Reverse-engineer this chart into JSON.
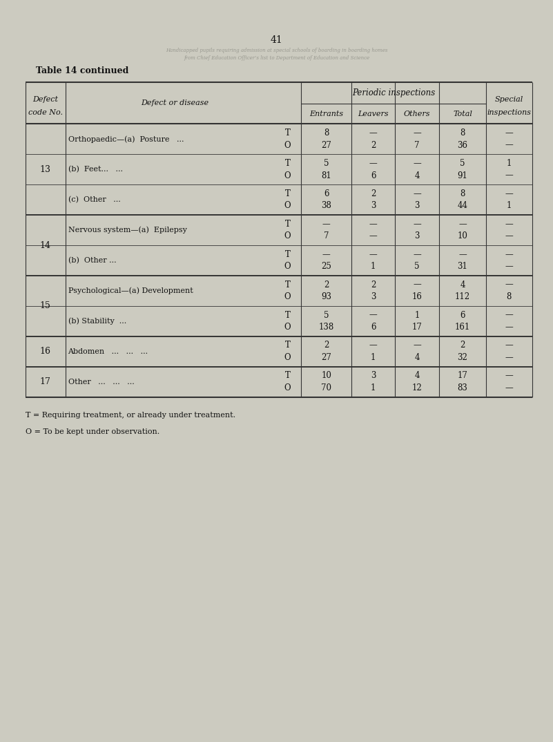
{
  "title_page_num": "41",
  "title_table": "Table 14 continued",
  "bg_color": "#cccbc0",
  "header": {
    "col1": "Defect\ncode No.",
    "col2": "Defect or disease",
    "col3": "Periodic inspections",
    "col3_sub": [
      "Entrants",
      "Leavers",
      "Others",
      "Total"
    ],
    "col4": "Special\ninspections"
  },
  "rows": [
    {
      "code": "13",
      "disease": "Orthopaedic—(a)  Posture   ...",
      "T_O": [
        "T",
        "O"
      ],
      "entrants": [
        "8",
        "27"
      ],
      "leavers": [
        "—",
        "2"
      ],
      "others": [
        "—",
        "7"
      ],
      "total": [
        "8",
        "36"
      ],
      "special": [
        "—",
        "—"
      ],
      "group_start": true
    },
    {
      "code": "",
      "disease": "(b)  Feet...   ...",
      "T_O": [
        "T",
        "O"
      ],
      "entrants": [
        "5",
        "81"
      ],
      "leavers": [
        "—",
        "6"
      ],
      "others": [
        "—",
        "4"
      ],
      "total": [
        "5",
        "91"
      ],
      "special": [
        "1",
        "—"
      ],
      "group_start": false
    },
    {
      "code": "",
      "disease": "(c)  Other   ...",
      "T_O": [
        "T",
        "O"
      ],
      "entrants": [
        "6",
        "38"
      ],
      "leavers": [
        "2",
        "3"
      ],
      "others": [
        "—",
        "3"
      ],
      "total": [
        "8",
        "44"
      ],
      "special": [
        "—",
        "1"
      ],
      "group_start": false
    },
    {
      "code": "14",
      "disease": "Nervous system—(a)  Epilepsy",
      "T_O": [
        "T",
        "O"
      ],
      "entrants": [
        "—",
        "7"
      ],
      "leavers": [
        "—",
        "—"
      ],
      "others": [
        "—",
        "3"
      ],
      "total": [
        "—",
        "10"
      ],
      "special": [
        "—",
        "—"
      ],
      "group_start": true
    },
    {
      "code": "",
      "disease": "(b)  Other ...",
      "T_O": [
        "T",
        "O"
      ],
      "entrants": [
        "—",
        "25"
      ],
      "leavers": [
        "—",
        "1"
      ],
      "others": [
        "—",
        "5"
      ],
      "total": [
        "—",
        "31"
      ],
      "special": [
        "—",
        "—"
      ],
      "group_start": false
    },
    {
      "code": "15",
      "disease": "Psychological—(a) Development",
      "T_O": [
        "T",
        "O"
      ],
      "entrants": [
        "2",
        "93"
      ],
      "leavers": [
        "2",
        "3"
      ],
      "others": [
        "—",
        "16"
      ],
      "total": [
        "4",
        "112"
      ],
      "special": [
        "—",
        "8"
      ],
      "group_start": true
    },
    {
      "code": "",
      "disease": "(b) Stability  ...",
      "T_O": [
        "T",
        "O"
      ],
      "entrants": [
        "5",
        "138"
      ],
      "leavers": [
        "—",
        "6"
      ],
      "others": [
        "1",
        "17"
      ],
      "total": [
        "6",
        "161"
      ],
      "special": [
        "—",
        "—"
      ],
      "group_start": false
    },
    {
      "code": "16",
      "disease": "Abdomen   ...   ...   ...",
      "T_O": [
        "T",
        "O"
      ],
      "entrants": [
        "2",
        "27"
      ],
      "leavers": [
        "—",
        "1"
      ],
      "others": [
        "—",
        "4"
      ],
      "total": [
        "2",
        "32"
      ],
      "special": [
        "—",
        "—"
      ],
      "group_start": true
    },
    {
      "code": "17",
      "disease": "Other   ...   ...   ...",
      "T_O": [
        "T",
        "O"
      ],
      "entrants": [
        "10",
        "70"
      ],
      "leavers": [
        "3",
        "1"
      ],
      "others": [
        "4",
        "12"
      ],
      "total": [
        "17",
        "83"
      ],
      "special": [
        "—",
        "—"
      ],
      "group_start": true
    }
  ],
  "footnotes": [
    "T = Requiring treatment, or already under treatment.",
    "O = To be kept under observation."
  ],
  "text_color": "#111111",
  "line_color": "#333333",
  "watermark_lines": [
    "Handicapped pupils requiring admission at special schools of boarding in boarding homes",
    "from Chief Education Officer’s list to Department of Education and Science"
  ]
}
